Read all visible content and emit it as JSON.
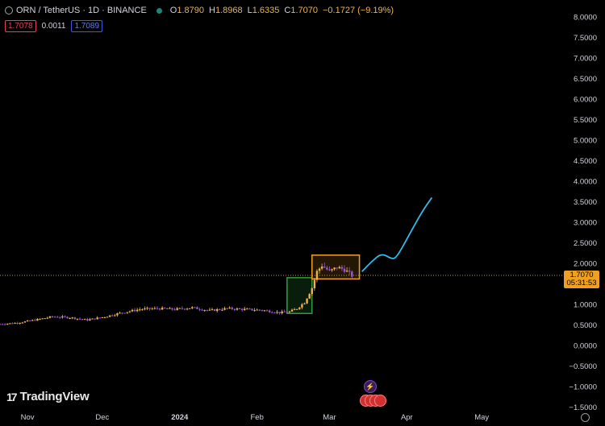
{
  "header": {
    "symbol": "ORN / TetherUS · 1D · BINANCE",
    "o_label": "O",
    "o_value": "1.8790",
    "h_label": "H",
    "h_value": "1.8968",
    "l_label": "L",
    "l_value": "1.6335",
    "c_label": "C",
    "c_value": "1.7070",
    "change": "−0.1727 (−9.19%)"
  },
  "quote": {
    "bid": "1.7078",
    "spread": "0.0011",
    "ask": "1.7089"
  },
  "brand": {
    "name": "TradingView",
    "mark": "17"
  },
  "price_tag": {
    "price": "1.7070",
    "countdown": "05:31:53"
  },
  "colors": {
    "accent": "#f0a020",
    "projection": "#35b8e6",
    "green_box": "#2e9e3e",
    "orange_box": "#f0a020",
    "candle_up": "#f0b34a",
    "candle_down": "#9b59d0"
  },
  "icons": [
    "coin-icon",
    "status-dot-icon",
    "lightning-icon",
    "us-flag-icon",
    "settings-icon"
  ],
  "chart_data": {
    "type": "candlestick",
    "y_ticks": [
      "8.0000",
      "7.5000",
      "7.0000",
      "6.5000",
      "6.0000",
      "5.5000",
      "5.0000",
      "4.5000",
      "4.0000",
      "3.5000",
      "3.0000",
      "2.5000",
      "2.0000",
      "1.5000",
      "1.0000",
      "0.5000",
      "0.0000",
      "−0.5000",
      "−1.0000",
      "−1.5000"
    ],
    "ylim": [
      -1.5,
      8.0
    ],
    "x_ticks": [
      "Nov",
      "Dec",
      "2024",
      "Feb",
      "Mar",
      "Apr",
      "May"
    ],
    "x_tick_dates": [
      "2023-11-01",
      "2023-12-01",
      "2024-01-01",
      "2024-02-01",
      "2024-03-01",
      "2024-04-01",
      "2024-05-01"
    ],
    "xlim": [
      "2023-10-21",
      "2024-05-31"
    ],
    "closes": [
      {
        "date": "2023-10-21",
        "close": 0.52
      },
      {
        "date": "2023-10-28",
        "close": 0.55
      },
      {
        "date": "2023-11-04",
        "close": 0.62
      },
      {
        "date": "2023-11-11",
        "close": 0.7
      },
      {
        "date": "2023-11-18",
        "close": 0.68
      },
      {
        "date": "2023-11-25",
        "close": 0.62
      },
      {
        "date": "2023-12-02",
        "close": 0.7
      },
      {
        "date": "2023-12-09",
        "close": 0.8
      },
      {
        "date": "2023-12-16",
        "close": 0.88
      },
      {
        "date": "2023-12-23",
        "close": 0.9
      },
      {
        "date": "2023-12-30",
        "close": 0.88
      },
      {
        "date": "2024-01-06",
        "close": 0.92
      },
      {
        "date": "2024-01-13",
        "close": 0.85
      },
      {
        "date": "2024-01-20",
        "close": 0.9
      },
      {
        "date": "2024-01-27",
        "close": 0.88
      },
      {
        "date": "2024-02-03",
        "close": 0.86
      },
      {
        "date": "2024-02-10",
        "close": 0.8
      },
      {
        "date": "2024-02-14",
        "close": 0.82
      },
      {
        "date": "2024-02-17",
        "close": 0.9
      },
      {
        "date": "2024-02-20",
        "close": 1.05
      },
      {
        "date": "2024-02-23",
        "close": 1.4
      },
      {
        "date": "2024-02-25",
        "close": 1.8
      },
      {
        "date": "2024-02-27",
        "close": 1.95
      },
      {
        "date": "2024-03-01",
        "close": 1.8
      },
      {
        "date": "2024-03-04",
        "close": 1.9
      },
      {
        "date": "2024-03-07",
        "close": 1.85
      },
      {
        "date": "2024-03-10",
        "close": 1.7
      }
    ],
    "last_price": 1.707,
    "annotations": {
      "green_box": {
        "from": "2024-02-13",
        "to": "2024-02-23",
        "y_from": 0.78,
        "y_to": 1.65
      },
      "orange_box": {
        "from": "2024-02-23",
        "to": "2024-03-13",
        "y_from": 1.62,
        "y_to": 2.2
      },
      "projection": [
        {
          "date": "2024-03-14",
          "y": 1.8
        },
        {
          "date": "2024-03-18",
          "y": 2.05
        },
        {
          "date": "2024-03-22",
          "y": 2.25
        },
        {
          "date": "2024-03-26",
          "y": 2.1
        },
        {
          "date": "2024-03-28",
          "y": 2.15
        },
        {
          "date": "2024-04-02",
          "y": 2.7
        },
        {
          "date": "2024-04-07",
          "y": 3.25
        },
        {
          "date": "2024-04-11",
          "y": 3.6
        }
      ]
    }
  }
}
